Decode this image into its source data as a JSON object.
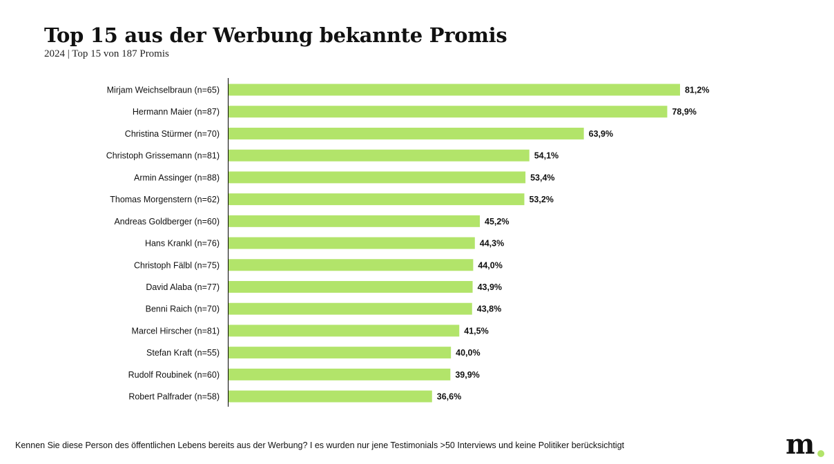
{
  "title": "Top 15 aus der Werbung bekannte Promis",
  "subtitle": "2024 | Top 15 von 187 Promis",
  "footnote": "Kennen Sie diese Person des öffentlichen Lebens bereits aus der Werbung? I es wurden nur jene Testimonials >50 Interviews und keine Politiker berücksichtigt",
  "logo": "m",
  "colors": {
    "bar": "#b2e46a",
    "logo_dot": "#b2e46a"
  },
  "chart_data": {
    "type": "bar",
    "orientation": "horizontal",
    "categories": [
      "Mirjam Weichselbraun (n=65)",
      "Hermann Maier (n=87)",
      "Christina Stürmer (n=70)",
      "Christoph Grissemann (n=81)",
      "Armin Assinger (n=88)",
      "Thomas Morgenstern (n=62)",
      "Andreas Goldberger (n=60)",
      "Hans Krankl (n=76)",
      "Christoph Fälbl (n=75)",
      "David Alaba (n=77)",
      "Benni Raich (n=70)",
      "Marcel Hirscher (n=81)",
      "Stefan Kraft (n=55)",
      "Rudolf Roubinek (n=60)",
      "Robert Palfrader (n=58)"
    ],
    "values": [
      81.2,
      78.9,
      63.9,
      54.1,
      53.4,
      53.2,
      45.2,
      44.3,
      44.0,
      43.9,
      43.8,
      41.5,
      40.0,
      39.9,
      36.6
    ],
    "labels": [
      "81,2%",
      "78,9%",
      "63,9%",
      "54,1%",
      "53,4%",
      "53,2%",
      "45,2%",
      "44,3%",
      "44,0%",
      "43,9%",
      "43,8%",
      "41,5%",
      "40,0%",
      "39,9%",
      "36,6%"
    ],
    "unit": "%",
    "xlim": [
      0,
      100
    ],
    "grid": false
  }
}
